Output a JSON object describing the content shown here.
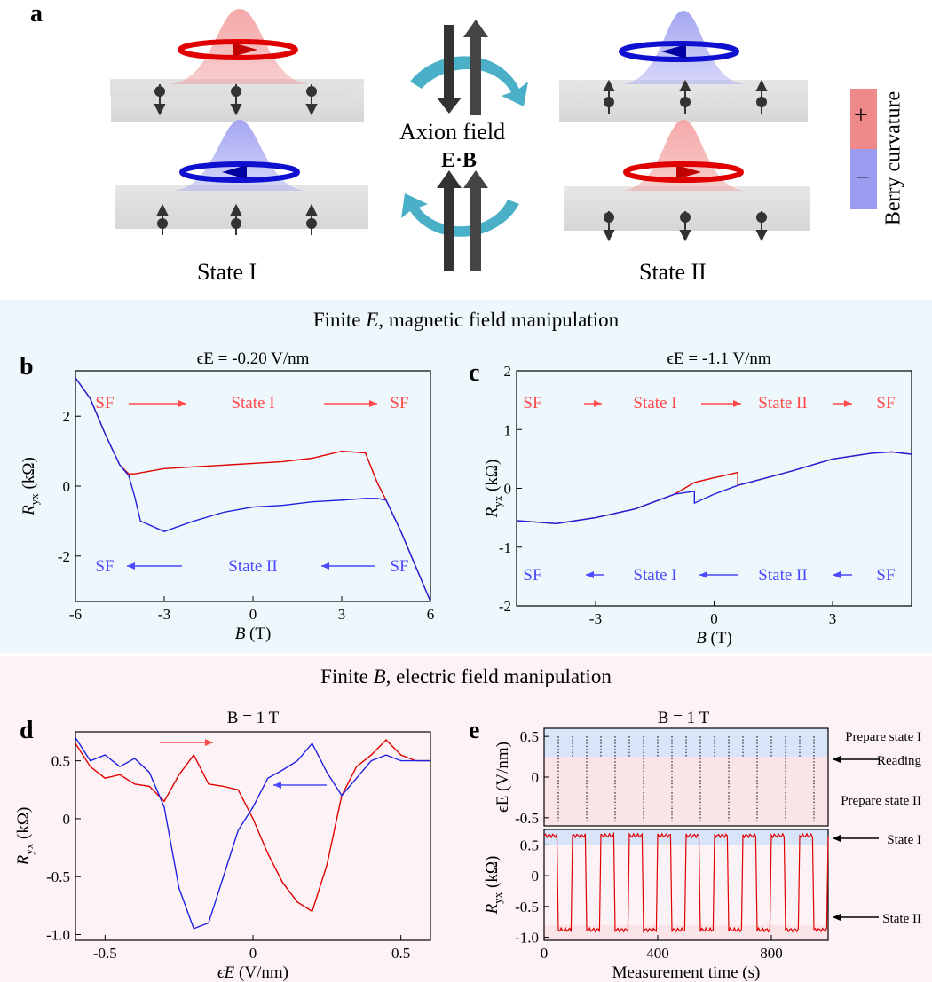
{
  "panel_a": {
    "letter": "a",
    "state_I_label": "State I",
    "state_II_label": "State II",
    "axion_label": "Axion field",
    "eb_label": "E·B",
    "legend_plus": "+",
    "legend_minus": "−",
    "legend_title": "Berry curvature",
    "colors": {
      "positive": "#f08a8a",
      "negative": "#9a9cf0",
      "arrow": "#4ab0c8"
    }
  },
  "section_E": {
    "title_prefix": "Finite ",
    "title_var": "E",
    "title_suffix": ", magnetic field manipulation",
    "bg": "#eef7fb"
  },
  "section_B": {
    "title_prefix": "Finite ",
    "title_var": "B",
    "title_suffix": ", electric field manipulation",
    "bg": "#fdf3f6"
  },
  "panel_b": {
    "letter": "b",
    "title": "ϵE = -0.20 V/nm",
    "top_annotations": [
      "SF",
      "State I",
      "SF"
    ],
    "bottom_annotations": [
      "SF",
      "State II",
      "SF"
    ]
  },
  "panel_c": {
    "letter": "c",
    "title": "ϵE = -1.1 V/nm",
    "top_annotations": [
      "SF",
      "State I",
      "State II",
      "SF"
    ],
    "bottom_annotations": [
      "SF",
      "State I",
      "State II",
      "SF"
    ]
  },
  "panel_d": {
    "letter": "d",
    "title": "B = 1 T"
  },
  "panel_e": {
    "letter": "e",
    "title": "B = 1 T",
    "right_labels": [
      "Prepare state I",
      "Reading",
      "Prepare state II",
      "State I",
      "State II"
    ]
  },
  "chart_data": [
    {
      "id": "b",
      "type": "line",
      "title": "ϵE = -0.20 V/nm",
      "xlabel": "B (T)",
      "ylabel": "Ryx (kΩ)",
      "xlim": [
        -6,
        6
      ],
      "ylim": [
        -3.3,
        3.3
      ],
      "xticks": [
        -6,
        -3,
        0,
        3,
        6
      ],
      "yticks": [
        -2,
        0,
        2
      ],
      "series": [
        {
          "color": "#e00000",
          "x": [
            -6,
            -5.5,
            -5,
            -4.5,
            -4.2,
            -4,
            -3,
            -2,
            -1,
            0,
            1,
            2,
            3,
            3.8,
            4.2,
            4.5,
            5,
            5.5,
            6
          ],
          "y": [
            3.1,
            2.5,
            1.5,
            0.6,
            0.35,
            0.35,
            0.5,
            0.55,
            0.6,
            0.65,
            0.7,
            0.8,
            1.0,
            0.95,
            0.1,
            -0.4,
            -1.3,
            -2.3,
            -3.3
          ]
        },
        {
          "color": "#2020e0",
          "x": [
            -6,
            -5.5,
            -5,
            -4.5,
            -4.2,
            -4.0,
            -3.8,
            -3,
            -2,
            -1,
            0,
            1,
            2,
            3,
            3.8,
            4.2,
            4.5,
            5,
            5.5,
            6
          ],
          "y": [
            3.1,
            2.5,
            1.5,
            0.6,
            0.3,
            -0.3,
            -1.0,
            -1.3,
            -1.0,
            -0.75,
            -0.6,
            -0.55,
            -0.45,
            -0.4,
            -0.35,
            -0.35,
            -0.4,
            -1.3,
            -2.3,
            -3.3
          ]
        }
      ]
    },
    {
      "id": "c",
      "type": "line",
      "title": "ϵE = -1.1 V/nm",
      "xlabel": "B (T)",
      "ylabel": "Ryx (kΩ)",
      "xlim": [
        -5,
        5
      ],
      "ylim": [
        -2,
        2
      ],
      "xticks": [
        -3,
        0,
        3
      ],
      "yticks": [
        -2,
        -1,
        0,
        1,
        2
      ],
      "series": [
        {
          "color": "#e00000",
          "x": [
            -5,
            -4,
            -3,
            -2,
            -1,
            -0.5,
            0,
            0.6,
            0.6,
            1,
            2,
            3,
            4,
            4.5,
            5
          ],
          "y": [
            -0.55,
            -0.6,
            -0.5,
            -0.35,
            -0.1,
            0.1,
            0.18,
            0.27,
            0.05,
            0.12,
            0.3,
            0.5,
            0.6,
            0.62,
            0.58
          ]
        },
        {
          "color": "#2020e0",
          "x": [
            -5,
            -4,
            -3,
            -2,
            -1,
            -0.5,
            -0.5,
            0,
            0.6,
            1,
            2,
            3,
            4,
            4.5,
            5
          ],
          "y": [
            -0.55,
            -0.6,
            -0.5,
            -0.35,
            -0.1,
            -0.05,
            -0.25,
            -0.1,
            0.05,
            0.12,
            0.3,
            0.5,
            0.6,
            0.62,
            0.58
          ]
        }
      ]
    },
    {
      "id": "d",
      "type": "line",
      "title": "B = 1 T",
      "xlabel": "ϵE (V/nm)",
      "ylabel": "Ryx (kΩ)",
      "xlim": [
        -0.6,
        0.6
      ],
      "ylim": [
        -1.05,
        0.75
      ],
      "xticks": [
        -0.5,
        0,
        0.5
      ],
      "yticks": [
        -1.0,
        -0.5,
        0,
        0.5
      ],
      "series": [
        {
          "color": "#e00000",
          "x": [
            -0.6,
            -0.55,
            -0.5,
            -0.45,
            -0.4,
            -0.35,
            -0.3,
            -0.25,
            -0.2,
            -0.15,
            -0.1,
            -0.05,
            0,
            0.05,
            0.1,
            0.15,
            0.2,
            0.25,
            0.3,
            0.35,
            0.4,
            0.45,
            0.5,
            0.55,
            0.6
          ],
          "y": [
            0.65,
            0.45,
            0.35,
            0.38,
            0.3,
            0.28,
            0.15,
            0.38,
            0.55,
            0.3,
            0.28,
            0.25,
            0.0,
            -0.3,
            -0.55,
            -0.72,
            -0.8,
            -0.4,
            0.2,
            0.45,
            0.55,
            0.68,
            0.55,
            0.5,
            0.5
          ]
        },
        {
          "color": "#2020e0",
          "x": [
            -0.6,
            -0.55,
            -0.5,
            -0.45,
            -0.4,
            -0.35,
            -0.3,
            -0.25,
            -0.2,
            -0.15,
            -0.1,
            -0.05,
            0,
            0.05,
            0.1,
            0.15,
            0.2,
            0.25,
            0.3,
            0.35,
            0.4,
            0.45,
            0.5,
            0.55,
            0.6
          ],
          "y": [
            0.7,
            0.5,
            0.55,
            0.45,
            0.52,
            0.4,
            0.1,
            -0.6,
            -0.95,
            -0.9,
            -0.5,
            -0.1,
            0.1,
            0.35,
            0.42,
            0.5,
            0.65,
            0.4,
            0.2,
            0.35,
            0.5,
            0.55,
            0.5,
            0.5,
            0.5
          ]
        }
      ]
    },
    {
      "id": "e-top",
      "type": "line",
      "ylabel": "ϵE (V/nm)",
      "xlim": [
        0,
        1000
      ],
      "ylim": [
        -0.6,
        0.6
      ],
      "yticks": [
        -0.5,
        0,
        0.5
      ],
      "levels": {
        "prepare_I": 0.5,
        "reading": 0.25,
        "prepare_II": -0.5
      },
      "switch_times": [
        50,
        100,
        150,
        200,
        250,
        300,
        350,
        400,
        450,
        500,
        550,
        600,
        650,
        700,
        750,
        800,
        850,
        900,
        950
      ]
    },
    {
      "id": "e-bottom",
      "type": "line",
      "xlabel": "Measurement time (s)",
      "ylabel": "Ryx (kΩ)",
      "xlim": [
        0,
        1000
      ],
      "ylim": [
        -1.05,
        0.75
      ],
      "xticks": [
        0,
        400,
        800
      ],
      "yticks": [
        -1.0,
        -0.5,
        0,
        0.5
      ],
      "series": [
        {
          "color": "#e00000",
          "state_I_value": 0.65,
          "state_II_value": -0.88,
          "period_s": 100
        }
      ]
    }
  ]
}
